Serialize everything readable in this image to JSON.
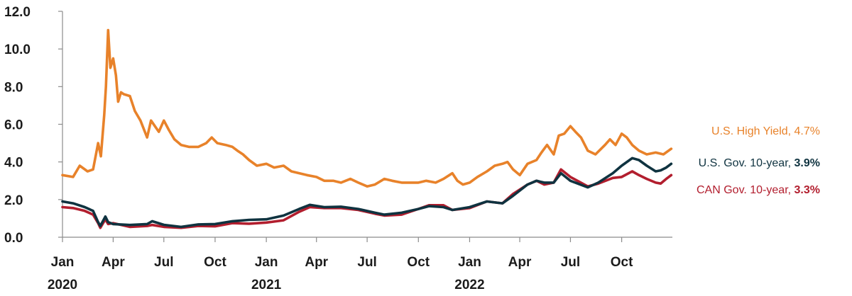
{
  "chart_data": {
    "type": "line",
    "title": "",
    "xlabel": "",
    "ylabel": "",
    "ylim": [
      0,
      12
    ],
    "yticks": [
      "0.0",
      "2.0",
      "4.0",
      "6.0",
      "8.0",
      "10.0",
      "12.0"
    ],
    "xlim": [
      "2020-01-01",
      "2022-12-31"
    ],
    "xticks": [
      {
        "date": "2020-01-01",
        "label": "Jan"
      },
      {
        "date": "2020-04-01",
        "label": "Apr"
      },
      {
        "date": "2020-07-01",
        "label": "Jul"
      },
      {
        "date": "2020-10-01",
        "label": "Oct"
      },
      {
        "date": "2021-01-01",
        "label": "Jan"
      },
      {
        "date": "2021-04-01",
        "label": "Apr"
      },
      {
        "date": "2021-07-01",
        "label": "Jul"
      },
      {
        "date": "2021-10-01",
        "label": "Oct"
      },
      {
        "date": "2022-01-01",
        "label": "Jan"
      },
      {
        "date": "2022-04-01",
        "label": "Apr"
      },
      {
        "date": "2022-07-01",
        "label": "Jul"
      },
      {
        "date": "2022-10-01",
        "label": "Oct"
      }
    ],
    "year_labels": [
      {
        "date": "2020-01-01",
        "label": "2020"
      },
      {
        "date": "2021-01-01",
        "label": "2021"
      },
      {
        "date": "2022-01-01",
        "label": "2022"
      }
    ],
    "grid": false,
    "legend": "direct labels at right end of lines",
    "series": [
      {
        "name": "U.S. High Yield",
        "end_value": "4.7%",
        "color": "#e8822a",
        "points": [
          [
            "2020-01-01",
            3.3
          ],
          [
            "2020-01-20",
            3.2
          ],
          [
            "2020-02-01",
            3.8
          ],
          [
            "2020-02-15",
            3.5
          ],
          [
            "2020-02-25",
            3.6
          ],
          [
            "2020-03-05",
            5.0
          ],
          [
            "2020-03-10",
            4.3
          ],
          [
            "2020-03-16",
            6.5
          ],
          [
            "2020-03-19",
            8.0
          ],
          [
            "2020-03-23",
            11.0
          ],
          [
            "2020-03-27",
            9.0
          ],
          [
            "2020-04-01",
            9.5
          ],
          [
            "2020-04-06",
            8.6
          ],
          [
            "2020-04-10",
            7.2
          ],
          [
            "2020-04-15",
            7.7
          ],
          [
            "2020-04-20",
            7.6
          ],
          [
            "2020-05-01",
            7.5
          ],
          [
            "2020-05-10",
            6.7
          ],
          [
            "2020-05-20",
            6.2
          ],
          [
            "2020-06-01",
            5.3
          ],
          [
            "2020-06-08",
            6.2
          ],
          [
            "2020-06-15",
            5.9
          ],
          [
            "2020-06-22",
            5.6
          ],
          [
            "2020-07-01",
            6.2
          ],
          [
            "2020-07-10",
            5.7
          ],
          [
            "2020-07-20",
            5.2
          ],
          [
            "2020-08-01",
            4.9
          ],
          [
            "2020-08-15",
            4.8
          ],
          [
            "2020-09-01",
            4.8
          ],
          [
            "2020-09-15",
            5.0
          ],
          [
            "2020-09-25",
            5.3
          ],
          [
            "2020-10-05",
            5.0
          ],
          [
            "2020-10-20",
            4.9
          ],
          [
            "2020-11-01",
            4.8
          ],
          [
            "2020-11-10",
            4.6
          ],
          [
            "2020-11-20",
            4.4
          ],
          [
            "2020-12-01",
            4.1
          ],
          [
            "2020-12-15",
            3.8
          ],
          [
            "2021-01-01",
            3.9
          ],
          [
            "2021-01-15",
            3.7
          ],
          [
            "2021-02-01",
            3.8
          ],
          [
            "2021-02-15",
            3.5
          ],
          [
            "2021-03-01",
            3.4
          ],
          [
            "2021-03-15",
            3.3
          ],
          [
            "2021-04-01",
            3.2
          ],
          [
            "2021-04-15",
            3.0
          ],
          [
            "2021-05-01",
            3.0
          ],
          [
            "2021-05-15",
            2.9
          ],
          [
            "2021-06-01",
            3.1
          ],
          [
            "2021-06-15",
            2.9
          ],
          [
            "2021-07-01",
            2.7
          ],
          [
            "2021-07-15",
            2.8
          ],
          [
            "2021-08-01",
            3.1
          ],
          [
            "2021-08-15",
            3.0
          ],
          [
            "2021-09-01",
            2.9
          ],
          [
            "2021-09-15",
            2.9
          ],
          [
            "2021-10-01",
            2.9
          ],
          [
            "2021-10-15",
            3.0
          ],
          [
            "2021-11-01",
            2.9
          ],
          [
            "2021-11-15",
            3.1
          ],
          [
            "2021-12-01",
            3.4
          ],
          [
            "2021-12-10",
            3.0
          ],
          [
            "2021-12-20",
            2.8
          ],
          [
            "2022-01-01",
            2.9
          ],
          [
            "2022-01-15",
            3.2
          ],
          [
            "2022-02-01",
            3.5
          ],
          [
            "2022-02-15",
            3.8
          ],
          [
            "2022-03-01",
            3.9
          ],
          [
            "2022-03-10",
            4.0
          ],
          [
            "2022-03-20",
            3.6
          ],
          [
            "2022-04-01",
            3.3
          ],
          [
            "2022-04-15",
            3.9
          ],
          [
            "2022-05-01",
            4.1
          ],
          [
            "2022-05-10",
            4.5
          ],
          [
            "2022-05-20",
            4.9
          ],
          [
            "2022-06-01",
            4.4
          ],
          [
            "2022-06-10",
            5.4
          ],
          [
            "2022-06-20",
            5.5
          ],
          [
            "2022-07-01",
            5.9
          ],
          [
            "2022-07-10",
            5.6
          ],
          [
            "2022-07-20",
            5.3
          ],
          [
            "2022-08-01",
            4.6
          ],
          [
            "2022-08-15",
            4.4
          ],
          [
            "2022-09-01",
            4.9
          ],
          [
            "2022-09-10",
            5.2
          ],
          [
            "2022-09-20",
            4.9
          ],
          [
            "2022-10-01",
            5.5
          ],
          [
            "2022-10-10",
            5.3
          ],
          [
            "2022-10-20",
            4.9
          ],
          [
            "2022-11-01",
            4.6
          ],
          [
            "2022-11-15",
            4.4
          ],
          [
            "2022-12-01",
            4.5
          ],
          [
            "2022-12-15",
            4.4
          ],
          [
            "2022-12-29",
            4.7
          ]
        ]
      },
      {
        "name": "U.S. Gov. 10-year",
        "end_value": "3.9%",
        "color": "#0f3340",
        "points": [
          [
            "2020-01-01",
            1.9
          ],
          [
            "2020-01-20",
            1.8
          ],
          [
            "2020-02-10",
            1.6
          ],
          [
            "2020-02-25",
            1.4
          ],
          [
            "2020-03-05",
            0.8
          ],
          [
            "2020-03-09",
            0.6
          ],
          [
            "2020-03-18",
            1.1
          ],
          [
            "2020-03-23",
            0.8
          ],
          [
            "2020-04-01",
            0.7
          ],
          [
            "2020-05-01",
            0.65
          ],
          [
            "2020-06-01",
            0.7
          ],
          [
            "2020-06-10",
            0.85
          ],
          [
            "2020-07-01",
            0.66
          ],
          [
            "2020-08-01",
            0.55
          ],
          [
            "2020-09-01",
            0.68
          ],
          [
            "2020-10-01",
            0.7
          ],
          [
            "2020-11-01",
            0.85
          ],
          [
            "2020-12-01",
            0.92
          ],
          [
            "2021-01-01",
            0.95
          ],
          [
            "2021-02-01",
            1.15
          ],
          [
            "2021-03-01",
            1.5
          ],
          [
            "2021-03-20",
            1.72
          ],
          [
            "2021-04-15",
            1.6
          ],
          [
            "2021-05-15",
            1.62
          ],
          [
            "2021-06-15",
            1.5
          ],
          [
            "2021-07-15",
            1.3
          ],
          [
            "2021-08-01",
            1.2
          ],
          [
            "2021-09-01",
            1.3
          ],
          [
            "2021-10-01",
            1.5
          ],
          [
            "2021-10-20",
            1.65
          ],
          [
            "2021-11-15",
            1.6
          ],
          [
            "2021-12-01",
            1.45
          ],
          [
            "2022-01-01",
            1.6
          ],
          [
            "2022-02-01",
            1.9
          ],
          [
            "2022-03-01",
            1.8
          ],
          [
            "2022-03-20",
            2.2
          ],
          [
            "2022-04-15",
            2.8
          ],
          [
            "2022-05-01",
            3.0
          ],
          [
            "2022-05-15",
            2.9
          ],
          [
            "2022-06-01",
            2.9
          ],
          [
            "2022-06-14",
            3.4
          ],
          [
            "2022-07-01",
            3.0
          ],
          [
            "2022-08-01",
            2.65
          ],
          [
            "2022-08-20",
            2.9
          ],
          [
            "2022-09-15",
            3.4
          ],
          [
            "2022-10-01",
            3.8
          ],
          [
            "2022-10-20",
            4.2
          ],
          [
            "2022-11-01",
            4.1
          ],
          [
            "2022-11-15",
            3.8
          ],
          [
            "2022-12-01",
            3.5
          ],
          [
            "2022-12-10",
            3.55
          ],
          [
            "2022-12-20",
            3.7
          ],
          [
            "2022-12-29",
            3.9
          ]
        ]
      },
      {
        "name": "CAN Gov. 10-year",
        "end_value": "3.3%",
        "color": "#b21e2e",
        "points": [
          [
            "2020-01-01",
            1.6
          ],
          [
            "2020-01-20",
            1.55
          ],
          [
            "2020-02-10",
            1.4
          ],
          [
            "2020-02-25",
            1.2
          ],
          [
            "2020-03-05",
            0.75
          ],
          [
            "2020-03-09",
            0.5
          ],
          [
            "2020-03-18",
            0.95
          ],
          [
            "2020-03-23",
            0.7
          ],
          [
            "2020-04-01",
            0.75
          ],
          [
            "2020-05-01",
            0.55
          ],
          [
            "2020-06-01",
            0.6
          ],
          [
            "2020-06-10",
            0.65
          ],
          [
            "2020-07-01",
            0.55
          ],
          [
            "2020-08-01",
            0.5
          ],
          [
            "2020-09-01",
            0.6
          ],
          [
            "2020-10-01",
            0.58
          ],
          [
            "2020-11-01",
            0.75
          ],
          [
            "2020-12-01",
            0.72
          ],
          [
            "2021-01-01",
            0.78
          ],
          [
            "2021-02-01",
            0.9
          ],
          [
            "2021-03-01",
            1.35
          ],
          [
            "2021-03-20",
            1.6
          ],
          [
            "2021-04-15",
            1.55
          ],
          [
            "2021-05-15",
            1.55
          ],
          [
            "2021-06-15",
            1.45
          ],
          [
            "2021-07-15",
            1.25
          ],
          [
            "2021-08-01",
            1.15
          ],
          [
            "2021-09-01",
            1.2
          ],
          [
            "2021-10-01",
            1.5
          ],
          [
            "2021-10-20",
            1.7
          ],
          [
            "2021-11-15",
            1.7
          ],
          [
            "2021-12-01",
            1.45
          ],
          [
            "2022-01-01",
            1.55
          ],
          [
            "2022-02-01",
            1.9
          ],
          [
            "2022-03-01",
            1.8
          ],
          [
            "2022-03-20",
            2.3
          ],
          [
            "2022-04-15",
            2.8
          ],
          [
            "2022-05-01",
            3.0
          ],
          [
            "2022-05-15",
            2.8
          ],
          [
            "2022-06-01",
            2.9
          ],
          [
            "2022-06-14",
            3.6
          ],
          [
            "2022-07-01",
            3.2
          ],
          [
            "2022-08-01",
            2.7
          ],
          [
            "2022-08-20",
            2.85
          ],
          [
            "2022-09-15",
            3.15
          ],
          [
            "2022-10-01",
            3.2
          ],
          [
            "2022-10-20",
            3.5
          ],
          [
            "2022-11-01",
            3.3
          ],
          [
            "2022-11-15",
            3.1
          ],
          [
            "2022-12-01",
            2.9
          ],
          [
            "2022-12-10",
            2.85
          ],
          [
            "2022-12-20",
            3.1
          ],
          [
            "2022-12-29",
            3.3
          ]
        ]
      }
    ]
  }
}
